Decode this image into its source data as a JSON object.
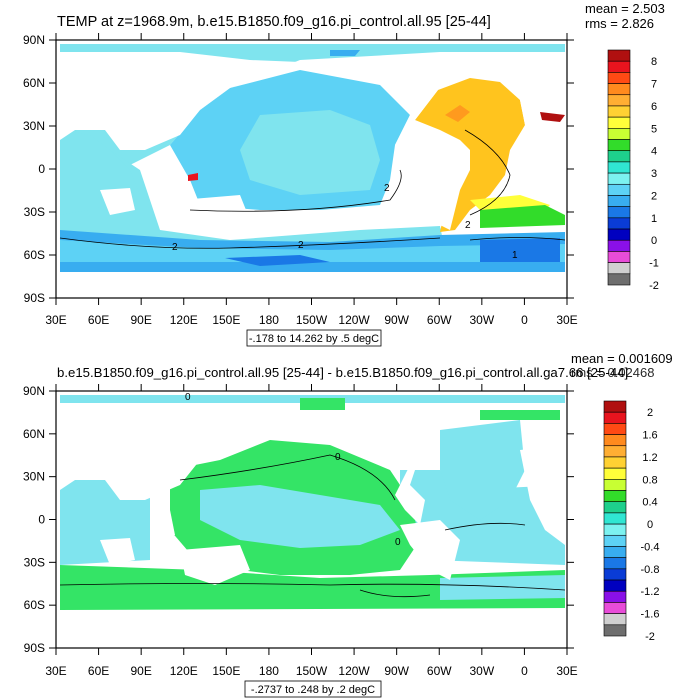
{
  "panels": [
    {
      "title": "TEMP at z=1968.9m, b.e15.B1850.f09_g16.pi_control.all.95 [25-44]",
      "stats": [
        "mean = 2.503",
        "rms = 2.826"
      ],
      "range_label": "-.178 to 14.262 by .5 degC",
      "field_color": "#7fe4ee"
    },
    {
      "title": "b.e15.B1850.f09_g16.pi_control.all.95 [25-44] - b.e15.B1850.f09_g16.pi_control.all.ga7.66 [25-44]",
      "stats": [
        "mean = 0.001609",
        "rms = 0.02468"
      ],
      "range_label": "-.2737 to .248 by .2 degC",
      "field_color": "#34e466"
    }
  ],
  "chart_data": [
    {
      "type": "heatmap",
      "title": "TEMP at z=1968.9m, b.e15.B1850.f09_g16.pi_control.all.95 [25-44]",
      "x_tick_labels": [
        "30E",
        "60E",
        "90E",
        "120E",
        "150E",
        "180",
        "150W",
        "120W",
        "90W",
        "60W",
        "30W",
        "0",
        "30E"
      ],
      "y_tick_labels": [
        "90N",
        "60N",
        "30N",
        "0",
        "30S",
        "60S",
        "90S"
      ],
      "colorbar_labels": [
        "8",
        "7",
        "6",
        "5",
        "4",
        "3",
        "2",
        "1",
        "0",
        "-1",
        "-2"
      ],
      "colorbar_colors": [
        "#b01010",
        "#e8141e",
        "#ff4a14",
        "#ff8a1e",
        "#ffae33",
        "#ffd133",
        "#ffff3a",
        "#c8ff33",
        "#32dc2a",
        "#1ed08c",
        "#30e6d2",
        "#7cf2f0",
        "#5dd2f5",
        "#38adf0",
        "#1a78e6",
        "#0a3cd6",
        "#0000c0",
        "#8a10e8",
        "#e84cd8",
        "#d0d0d0",
        "#6e6e6e"
      ],
      "contour_labels": [
        "2",
        "2",
        "2",
        "2",
        "1"
      ],
      "grid": false
    },
    {
      "type": "heatmap",
      "title": "b.e15.B1850.f09_g16.pi_control.all.95 [25-44] - b.e15.B1850.f09_g16.pi_control.all.ga7.66 [25-44]",
      "x_tick_labels": [
        "30E",
        "60E",
        "90E",
        "120E",
        "150E",
        "180",
        "150W",
        "120W",
        "90W",
        "60W",
        "30W",
        "0",
        "30E"
      ],
      "y_tick_labels": [
        "90N",
        "60N",
        "30N",
        "0",
        "30S",
        "60S",
        "90S"
      ],
      "colorbar_labels": [
        "2",
        "1.6",
        "1.2",
        "0.8",
        "0.4",
        "0",
        "-0.4",
        "-0.8",
        "-1.2",
        "-1.6",
        "-2"
      ],
      "colorbar_colors": [
        "#b01010",
        "#e8141e",
        "#ff4a14",
        "#ff8a1e",
        "#ffae33",
        "#ffd133",
        "#ffff3a",
        "#c8ff33",
        "#32dc2a",
        "#1ed08c",
        "#30e6d2",
        "#7cf2f0",
        "#5dd2f5",
        "#38adf0",
        "#1a78e6",
        "#0a3cd6",
        "#0000c0",
        "#8a10e8",
        "#e84cd8",
        "#d0d0d0",
        "#6e6e6e"
      ],
      "contour_labels": [
        "0",
        "0",
        "0"
      ],
      "grid": false
    }
  ]
}
